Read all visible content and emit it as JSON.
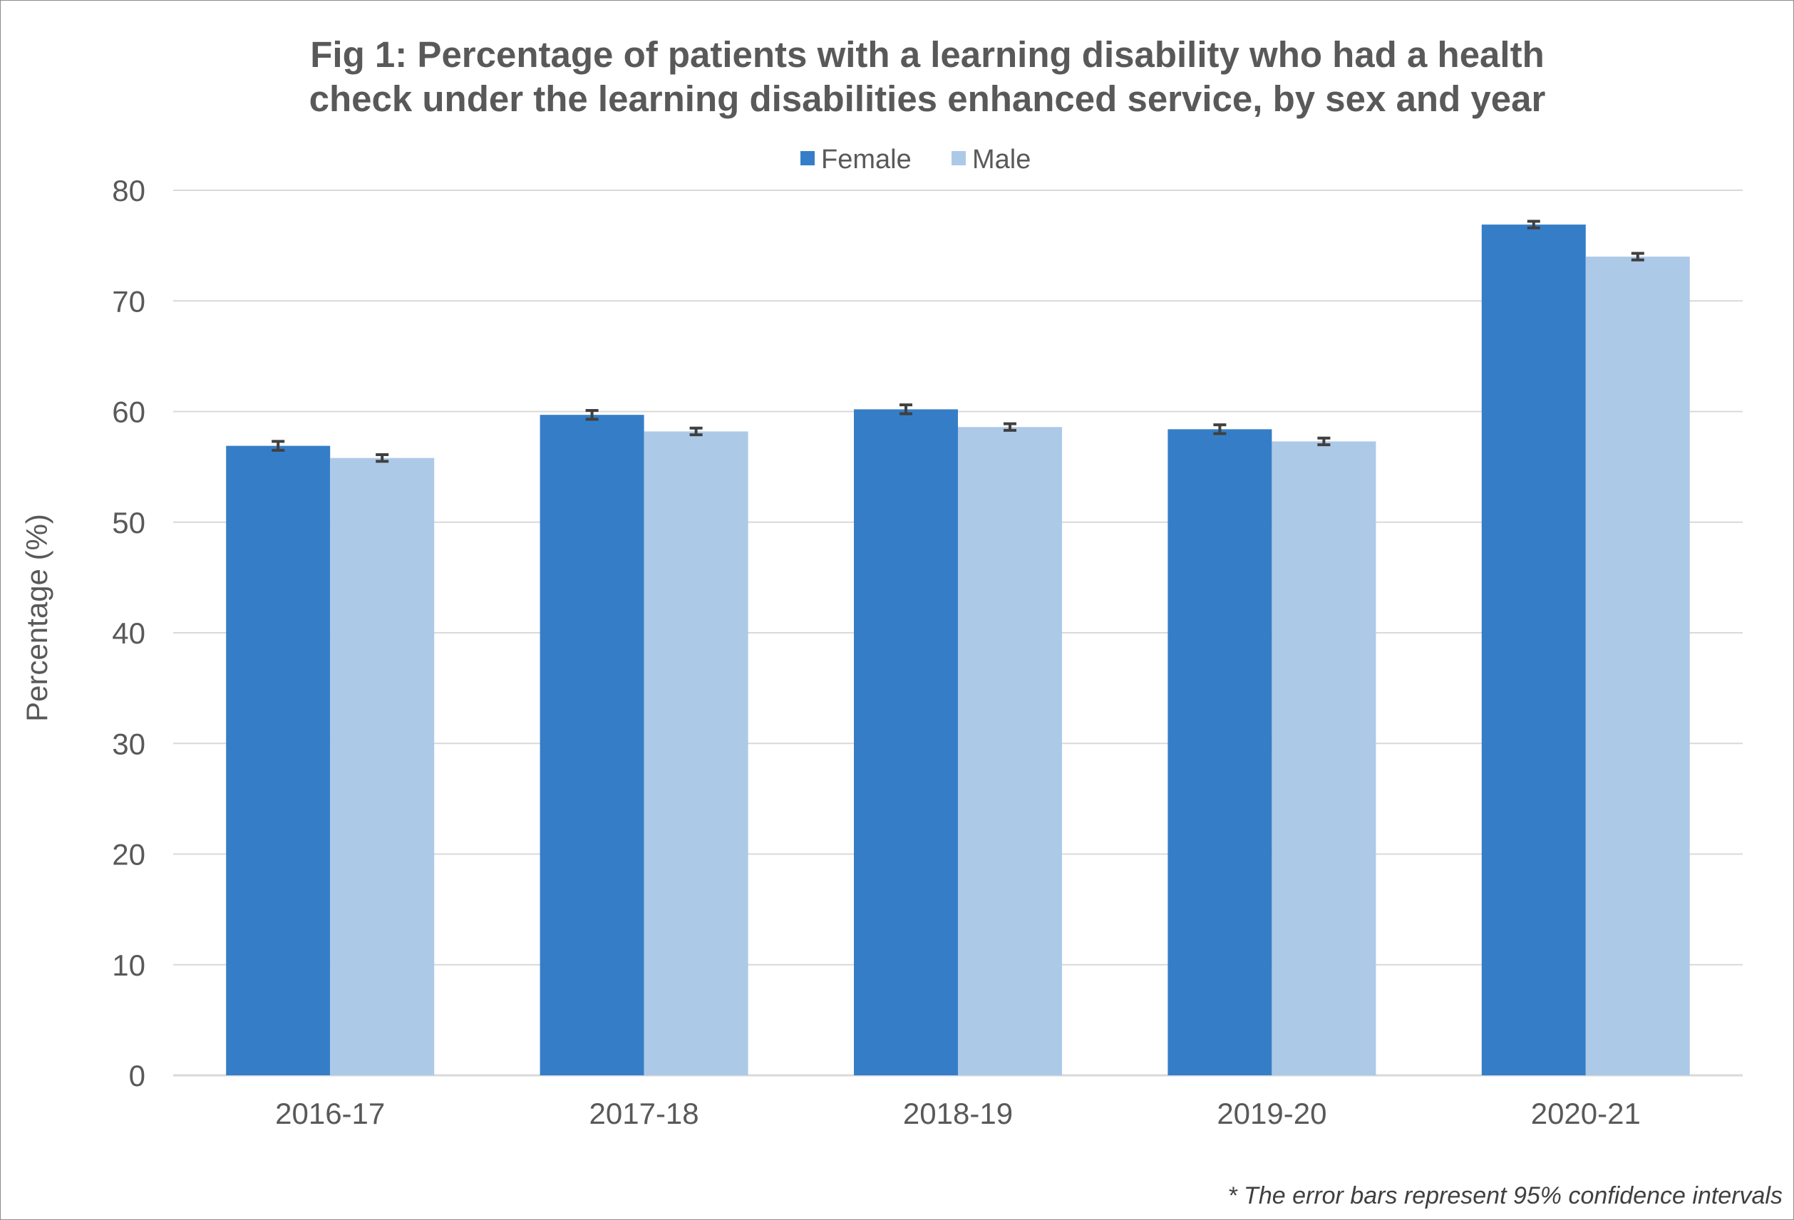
{
  "chart_data": {
    "type": "bar",
    "title_lines": [
      "Fig 1: Percentage of patients with a learning disability who had a health",
      "check under the learning disabilities enhanced service, by sex and year"
    ],
    "ylabel": "Percentage (%)",
    "xlabel": "",
    "ylim": [
      0,
      80
    ],
    "yticks": [
      0,
      10,
      20,
      30,
      40,
      50,
      60,
      70,
      80
    ],
    "grid": true,
    "legend_position": "top-center",
    "categories": [
      "2016-17",
      "2017-18",
      "2018-19",
      "2019-20",
      "2020-21"
    ],
    "series": [
      {
        "name": "Female",
        "color": "#357ec7",
        "values": [
          56.9,
          59.7,
          60.2,
          58.4,
          76.9
        ],
        "ci_low": [
          56.5,
          59.3,
          59.8,
          58.0,
          76.6
        ],
        "ci_high": [
          57.3,
          60.1,
          60.6,
          58.8,
          77.2
        ]
      },
      {
        "name": "Male",
        "color": "#adc9e8",
        "values": [
          55.8,
          58.2,
          58.6,
          57.3,
          74.0
        ],
        "ci_low": [
          55.5,
          57.9,
          58.3,
          57.0,
          73.7
        ],
        "ci_high": [
          56.1,
          58.5,
          58.9,
          57.6,
          74.3
        ]
      }
    ],
    "footnote": "* The error bars represent 95% confidence intervals",
    "colors": {
      "gridline": "#d9d9d9",
      "error_bar": "#404040",
      "text": "#595959"
    }
  }
}
